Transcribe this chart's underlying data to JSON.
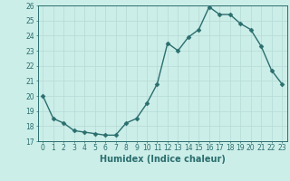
{
  "x": [
    0,
    1,
    2,
    3,
    4,
    5,
    6,
    7,
    8,
    9,
    10,
    11,
    12,
    13,
    14,
    15,
    16,
    17,
    18,
    19,
    20,
    21,
    22,
    23
  ],
  "y": [
    20.0,
    18.5,
    18.2,
    17.7,
    17.6,
    17.5,
    17.4,
    17.4,
    18.2,
    18.5,
    19.5,
    20.8,
    23.5,
    23.0,
    23.9,
    24.4,
    25.9,
    25.4,
    25.4,
    24.8,
    24.4,
    23.3,
    21.7,
    20.8
  ],
  "xlim": [
    -0.5,
    23.5
  ],
  "ylim": [
    17,
    26
  ],
  "yticks": [
    17,
    18,
    19,
    20,
    21,
    22,
    23,
    24,
    25,
    26
  ],
  "xticks": [
    0,
    1,
    2,
    3,
    4,
    5,
    6,
    7,
    8,
    9,
    10,
    11,
    12,
    13,
    14,
    15,
    16,
    17,
    18,
    19,
    20,
    21,
    22,
    23
  ],
  "xlabel": "Humidex (Indice chaleur)",
  "line_color": "#2a6e6e",
  "marker_color": "#2a6e6e",
  "bg_color": "#cceee8",
  "grid_color": "#b8ddd8",
  "xlabel_fontsize": 7,
  "tick_fontsize": 5.5,
  "marker_size": 2.5,
  "line_width": 1.0
}
